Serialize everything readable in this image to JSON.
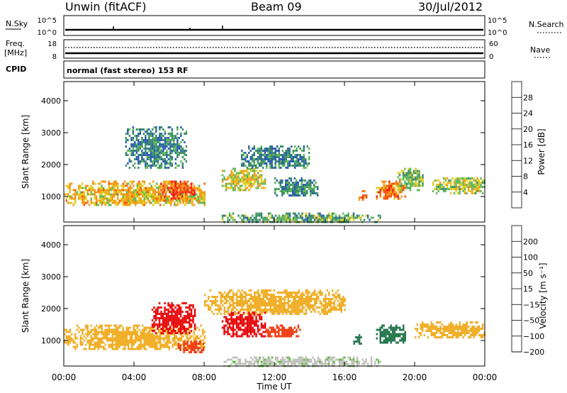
{
  "header": {
    "radar": "Unwin (fitACF)",
    "beam": "Beam 09",
    "date": "30/Jul/2012"
  },
  "strips": {
    "nsky": {
      "label": "N.Sky",
      "left_top": "10^5",
      "left_bottom": "10^0",
      "right_top": "10^5",
      "right_bottom": "10^0",
      "right_label": "N.Search"
    },
    "freq": {
      "label": "Freq.",
      "unit": "[MHz]",
      "left_top": "18",
      "left_bottom": "8",
      "right_top": "60",
      "right_bottom": "0",
      "right_label": "Nave"
    },
    "cpid": {
      "label": "CPID",
      "value": "normal (fast stereo) 153 RF"
    }
  },
  "chart_data": [
    {
      "type": "heatmap",
      "parameter": "power",
      "ylabel": "Slant Range [km]",
      "xlabel": "Time UT",
      "x_ticks": [
        "00:00",
        "04:00",
        "08:00",
        "12:00",
        "16:00",
        "20:00",
        "00:00"
      ],
      "xlim_hours": [
        0,
        24
      ],
      "y_ticks": [
        1000,
        2000,
        3000,
        4000
      ],
      "ylim": [
        200,
        4600
      ],
      "colorbar": {
        "label": "Power [dB]",
        "ticks": [
          4,
          8,
          12,
          16,
          20,
          24,
          28
        ],
        "colors": [
          "#1a1aff",
          "#2e5fb0",
          "#3c8c6c",
          "#5fb858",
          "#e2cc22",
          "#f39a1c",
          "#f55a14",
          "#ef1a14"
        ],
        "range": [
          0,
          32
        ]
      },
      "regions": [
        {
          "t": [
            0.0,
            8.0
          ],
          "r": [
            700,
            1500
          ],
          "level": 20
        },
        {
          "t": [
            3.5,
            7.0
          ],
          "r": [
            1900,
            3200
          ],
          "level": 9
        },
        {
          "t": [
            5.5,
            7.5
          ],
          "r": [
            900,
            1500
          ],
          "level": 26
        },
        {
          "t": [
            6.5,
            8.0
          ],
          "r": [
            800,
            1100
          ],
          "level": 18
        },
        {
          "t": [
            9.0,
            11.5
          ],
          "r": [
            1200,
            1900
          ],
          "level": 18
        },
        {
          "t": [
            10.0,
            14.0
          ],
          "r": [
            1900,
            2600
          ],
          "level": 9
        },
        {
          "t": [
            12.0,
            14.5
          ],
          "r": [
            1000,
            1600
          ],
          "level": 10
        },
        {
          "t": [
            16.8,
            17.3
          ],
          "r": [
            900,
            1200
          ],
          "level": 24
        },
        {
          "t": [
            17.8,
            19.5
          ],
          "r": [
            900,
            1500
          ],
          "level": 24
        },
        {
          "t": [
            19.0,
            20.5
          ],
          "r": [
            1200,
            1900
          ],
          "level": 14
        },
        {
          "t": [
            21.0,
            24.0
          ],
          "r": [
            1100,
            1600
          ],
          "level": 16
        },
        {
          "t": [
            9.0,
            18.0
          ],
          "r": [
            200,
            500
          ],
          "level": 12
        }
      ]
    },
    {
      "type": "heatmap",
      "parameter": "velocity",
      "ylabel": "Slant Range [km]",
      "xlabel": "Time UT",
      "x_ticks": [
        "00:00",
        "04:00",
        "08:00",
        "12:00",
        "16:00",
        "20:00",
        "00:00"
      ],
      "xlim_hours": [
        0,
        24
      ],
      "y_ticks": [
        1000,
        2000,
        3000,
        4000
      ],
      "ylim": [
        200,
        4600
      ],
      "colorbar": {
        "label": "Velocity [m s⁻¹]",
        "ticks": [
          "200",
          "100",
          "50",
          "15",
          "−15",
          "−50",
          "−100",
          "−200"
        ],
        "colors": [
          "#1c38d8",
          "#2a7a52",
          "#5cbc3a",
          "#c0c0bc",
          "#f0b02c",
          "#f07a1a",
          "#ef3e14",
          "#e8080a"
        ]
      },
      "regions": [
        {
          "t": [
            0.0,
            8.0
          ],
          "r": [
            700,
            1500
          ],
          "level": 0
        },
        {
          "t": [
            5.0,
            7.5
          ],
          "r": [
            1200,
            2200
          ],
          "level": -180
        },
        {
          "t": [
            6.5,
            8.0
          ],
          "r": [
            600,
            1000
          ],
          "level": -80
        },
        {
          "t": [
            8.0,
            16.0
          ],
          "r": [
            1800,
            2600
          ],
          "level": 0
        },
        {
          "t": [
            9.0,
            11.5
          ],
          "r": [
            1100,
            1900
          ],
          "level": -180
        },
        {
          "t": [
            11.5,
            13.5
          ],
          "r": [
            1100,
            1500
          ],
          "level": -70
        },
        {
          "t": [
            16.5,
            17.0
          ],
          "r": [
            900,
            1200
          ],
          "level": 120
        },
        {
          "t": [
            17.8,
            19.5
          ],
          "r": [
            900,
            1500
          ],
          "level": 150
        },
        {
          "t": [
            20.0,
            24.0
          ],
          "r": [
            1100,
            1600
          ],
          "level": 0
        },
        {
          "t": [
            9.0,
            18.0
          ],
          "r": [
            200,
            500
          ],
          "level": 40
        }
      ]
    }
  ]
}
